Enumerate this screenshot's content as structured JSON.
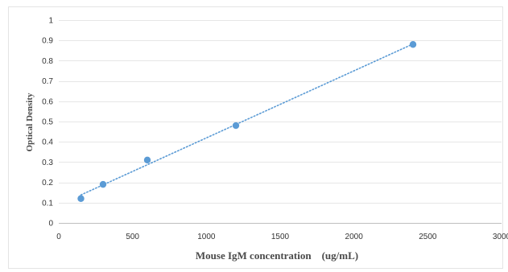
{
  "chart_data": {
    "type": "scatter",
    "title": "",
    "xlabel": "Mouse IgM concentration　(ug/mL)",
    "ylabel": "Optical Density",
    "xlim": [
      0,
      3000
    ],
    "ylim": [
      0,
      1
    ],
    "x_ticks": [
      0,
      500,
      1000,
      1500,
      2000,
      2500,
      3000
    ],
    "y_ticks": [
      0,
      0.1,
      0.2,
      0.3,
      0.4,
      0.5,
      0.6,
      0.7,
      0.8,
      0.9,
      1
    ],
    "x_tick_labels": [
      "0",
      "500",
      "1000",
      "1500",
      "2000",
      "2500",
      "3000"
    ],
    "y_tick_labels": [
      "0",
      "0.1",
      "0.2",
      "0.3",
      "0.4",
      "0.5",
      "0.6",
      "0.7",
      "0.8",
      "0.9",
      "1"
    ],
    "grid": "horizontal",
    "legend": "none",
    "series": [
      {
        "x": [
          150,
          300,
          600,
          1200,
          2400
        ],
        "y": [
          0.12,
          0.19,
          0.31,
          0.48,
          0.88
        ],
        "color": "#5b9bd5",
        "trendline": {
          "type": "linear",
          "style": "dotted",
          "color": "#5b9bd5"
        }
      }
    ]
  }
}
